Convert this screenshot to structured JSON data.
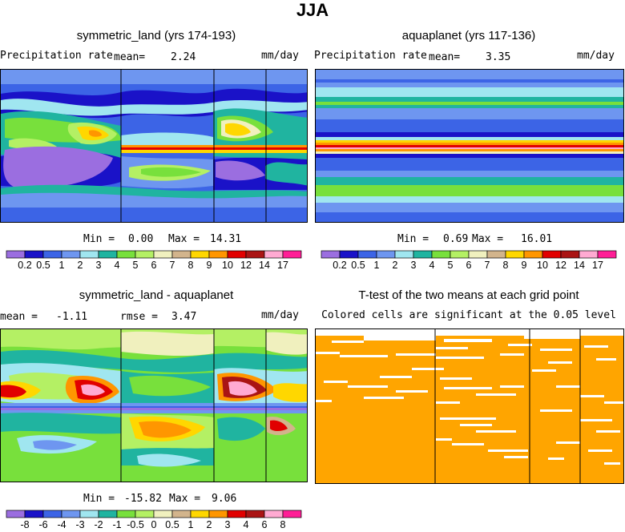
{
  "title": "JJA",
  "panels": {
    "top_left": {
      "title": "symmetric_land (yrs 174-193)",
      "field_label": "Precipitation rate",
      "mean_label": "mean=",
      "mean_value": "2.24",
      "units": "mm/day",
      "min_label": "Min =",
      "min_value": "0.00",
      "max_label": "Max =",
      "max_value": "14.31"
    },
    "top_right": {
      "title": "aquaplanet (yrs 117-136)",
      "field_label": "Precipitation rate",
      "mean_label": "mean=",
      "mean_value": "3.35",
      "units": "mm/day",
      "min_label": "Min =",
      "min_value": "0.69",
      "max_label": "Max =",
      "max_value": "16.01"
    },
    "bottom_left": {
      "title": "symmetric_land - aquaplanet",
      "mean_label": "mean =",
      "mean_value": "-1.11",
      "rmse_label": "rmse =",
      "rmse_value": "3.47",
      "units": "mm/day",
      "min_label": "Min =",
      "min_value": "-15.82",
      "max_label": "Max =",
      "max_value": "9.06"
    },
    "bottom_right": {
      "title": "T-test of the two means at each grid point",
      "subtitle": "Colored cells are significant at the 0.05 level"
    }
  },
  "colorbars": {
    "precip": {
      "labels": [
        "0.2",
        "0.5",
        "1",
        "2",
        "3",
        "4",
        "5",
        "6",
        "7",
        "8",
        "9",
        "10",
        "12",
        "14",
        "17"
      ],
      "colors": [
        "#9b6ee0",
        "#1a12c8",
        "#3c64e6",
        "#6e96f0",
        "#a0e6f0",
        "#20b4a0",
        "#78e03c",
        "#b4f064",
        "#f0f0be",
        "#d2b48c",
        "#ffd700",
        "#ff9600",
        "#e10000",
        "#aa1414",
        "#ffaad2",
        "#ff1e96"
      ]
    },
    "diff": {
      "labels": [
        "-8",
        "-6",
        "-4",
        "-3",
        "-2",
        "-1",
        "-0.5",
        "0",
        "0.5",
        "1",
        "2",
        "3",
        "4",
        "6",
        "8"
      ],
      "colors": [
        "#9b6ee0",
        "#1a12c8",
        "#3c64e6",
        "#6e96f0",
        "#a0e6f0",
        "#20b4a0",
        "#78e03c",
        "#b4f064",
        "#f0f0be",
        "#d2b48c",
        "#ffd700",
        "#ff9600",
        "#e10000",
        "#aa1414",
        "#ffaad2",
        "#ff1e96"
      ]
    }
  },
  "colors": {
    "significant": "#ffa500",
    "not_significant": "#ffffff"
  }
}
